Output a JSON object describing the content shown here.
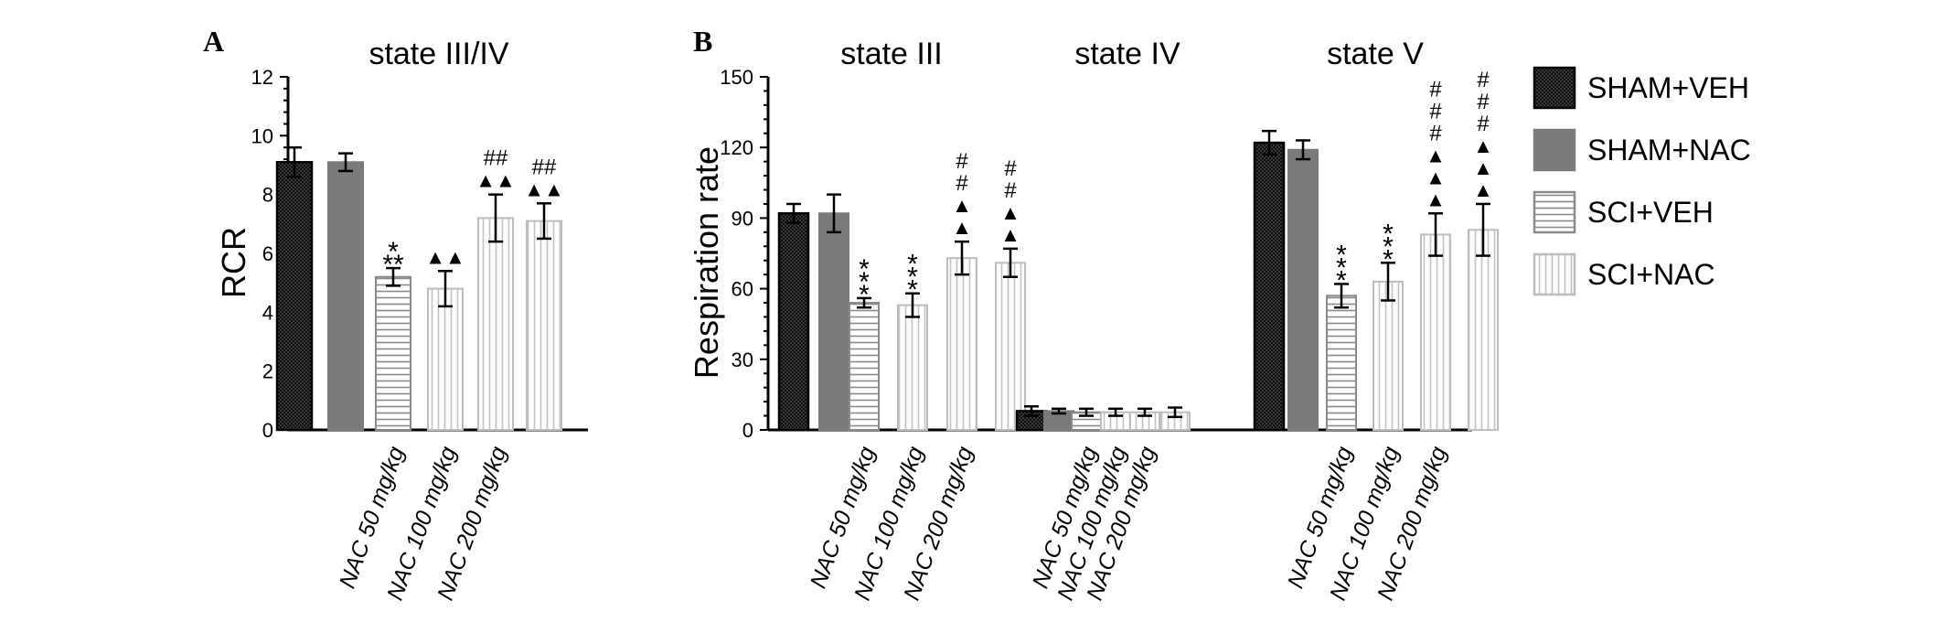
{
  "colors": {
    "sham_veh": "#2a2a2a",
    "sham_nac": "#7a7a7a",
    "sci_stroke": "#8a8a8a",
    "sci_nac_stroke": "#bdbdbd"
  },
  "legend": [
    {
      "label": "SHAM+VEH",
      "pattern": "checker"
    },
    {
      "label": "SHAM+NAC",
      "pattern": "solid-gray"
    },
    {
      "label": "SCI+VEH",
      "pattern": "hlines"
    },
    {
      "label": "SCI+NAC",
      "pattern": "vlines"
    }
  ],
  "chart_data": [
    {
      "panel": "A",
      "type": "bar",
      "title": "state III/IV",
      "ylabel": "RCR",
      "ylim": [
        0,
        12
      ],
      "yticks": [
        0,
        2,
        4,
        6,
        8,
        10,
        12
      ],
      "groups": [
        {
          "name": "state III/IV",
          "bars": [
            {
              "series": "SHAM+VEH",
              "value": 9.1,
              "err": 0.5,
              "label": "",
              "ann": []
            },
            {
              "series": "SHAM+NAC",
              "value": 9.1,
              "err": 0.3,
              "label": "",
              "ann": []
            },
            {
              "series": "SCI+VEH",
              "value": 5.2,
              "err": 0.3,
              "label": "NAC 50 mg/kg",
              "ann": [
                "*",
                "**"
              ]
            },
            {
              "series": "SCI+NAC",
              "value": 4.8,
              "err": 0.6,
              "label": "NAC 100 mg/kg",
              "ann": [
                "▲▲"
              ]
            },
            {
              "series": "SCI+NAC",
              "value": 7.2,
              "err": 0.8,
              "label": "NAC 200 mg/kg",
              "ann": [
                "##",
                "▲▲"
              ]
            },
            {
              "series": "SCI+NAC",
              "value": 7.1,
              "err": 0.6,
              "label": "",
              "ann": [
                "##",
                "▲▲"
              ]
            }
          ]
        }
      ]
    },
    {
      "panel": "B",
      "type": "bar",
      "ylabel": "Respiration rate",
      "ylim": [
        0,
        150
      ],
      "yticks": [
        0,
        30,
        60,
        90,
        120,
        150
      ],
      "groups": [
        {
          "name": "state III",
          "bars": [
            {
              "series": "SHAM+VEH",
              "value": 92,
              "err": 4,
              "label": "",
              "ann": []
            },
            {
              "series": "SHAM+NAC",
              "value": 92,
              "err": 8,
              "label": "",
              "ann": []
            },
            {
              "series": "SCI+VEH",
              "value": 54,
              "err": 2,
              "label": "NAC 50 mg/kg",
              "ann": [
                "*",
                "*",
                "*"
              ]
            },
            {
              "series": "SCI+NAC",
              "value": 53,
              "err": 5,
              "label": "NAC 100 mg/kg",
              "ann": [
                "*",
                "*",
                "*"
              ]
            },
            {
              "series": "SCI+NAC",
              "value": 73,
              "err": 7,
              "label": "NAC 200 mg/kg",
              "ann": [
                "#",
                "#",
                "▲",
                "▲"
              ]
            },
            {
              "series": "SCI+NAC",
              "value": 71,
              "err": 6,
              "label": "",
              "ann": [
                "#",
                "#",
                "▲",
                "▲"
              ]
            }
          ]
        },
        {
          "name": "state IV",
          "bars": [
            {
              "series": "SHAM+VEH",
              "value": 8,
              "err": 2,
              "label": "",
              "ann": []
            },
            {
              "series": "SHAM+NAC",
              "value": 8,
              "err": 1,
              "label": "",
              "ann": []
            },
            {
              "series": "SCI+VEH",
              "value": 7.5,
              "err": 1.5,
              "label": "NAC 50 mg/kg",
              "ann": []
            },
            {
              "series": "SCI+NAC",
              "value": 7.5,
              "err": 1.5,
              "label": "NAC 100 mg/kg",
              "ann": []
            },
            {
              "series": "SCI+NAC",
              "value": 7.5,
              "err": 1.5,
              "label": "NAC 200 mg/kg",
              "ann": []
            },
            {
              "series": "SCI+NAC",
              "value": 7.5,
              "err": 2,
              "label": "",
              "ann": []
            }
          ]
        },
        {
          "name": "state V",
          "bars": [
            {
              "series": "SHAM+VEH",
              "value": 122,
              "err": 5,
              "label": "",
              "ann": []
            },
            {
              "series": "SHAM+NAC",
              "value": 119,
              "err": 4,
              "label": "",
              "ann": []
            },
            {
              "series": "SCI+VEH",
              "value": 57,
              "err": 5,
              "label": "NAC 50 mg/kg",
              "ann": [
                "*",
                "*",
                "*"
              ]
            },
            {
              "series": "SCI+NAC",
              "value": 63,
              "err": 8,
              "label": "NAC 100 mg/kg",
              "ann": [
                "*",
                "*",
                "*"
              ]
            },
            {
              "series": "SCI+NAC",
              "value": 83,
              "err": 9,
              "label": "NAC 200 mg/kg",
              "ann": [
                "#",
                "#",
                "#",
                "▲",
                "▲",
                "▲"
              ]
            },
            {
              "series": "SCI+NAC",
              "value": 85,
              "err": 11,
              "label": "",
              "ann": [
                "#",
                "#",
                "#",
                "▲",
                "▲",
                "▲"
              ]
            }
          ]
        }
      ]
    }
  ]
}
